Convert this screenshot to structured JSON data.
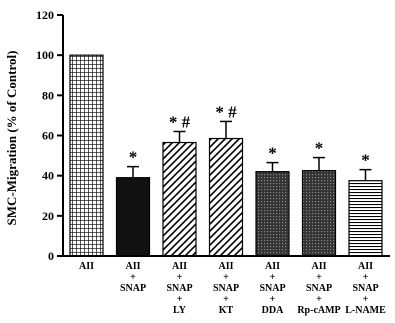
{
  "chart_data": {
    "type": "bar",
    "title": "",
    "xlabel": "",
    "ylabel": "SMC-Migration (% of Control)",
    "ylim": [
      0,
      120
    ],
    "yticks": [
      0,
      20,
      40,
      60,
      80,
      100,
      120
    ],
    "grid": false,
    "legend": "none",
    "categories": [
      [
        "AII"
      ],
      [
        "AII",
        "+",
        "SNAP"
      ],
      [
        "AII",
        "+",
        "SNAP",
        "+",
        "LY"
      ],
      [
        "AII",
        "+",
        "SNAP",
        "+",
        "KT"
      ],
      [
        "AII",
        "+",
        "SNAP",
        "+",
        "DDA"
      ],
      [
        "AII",
        "+",
        "SNAP",
        "+",
        "Rp-cAMP"
      ],
      [
        "AII",
        "+",
        "SNAP",
        "+",
        "L-NAME"
      ]
    ],
    "values": [
      100,
      39,
      56.5,
      58.5,
      42,
      42.5,
      37.5
    ],
    "errors": [
      0,
      5.5,
      5.5,
      8.5,
      4.5,
      6.5,
      5.5
    ],
    "significance": [
      "",
      "*",
      "* #",
      "* #",
      "*",
      "*",
      "*"
    ],
    "patterns": [
      "grid",
      "solid-black",
      "diagonal",
      "diagonal",
      "dense-dots",
      "dense-dots",
      "horizontal"
    ]
  }
}
